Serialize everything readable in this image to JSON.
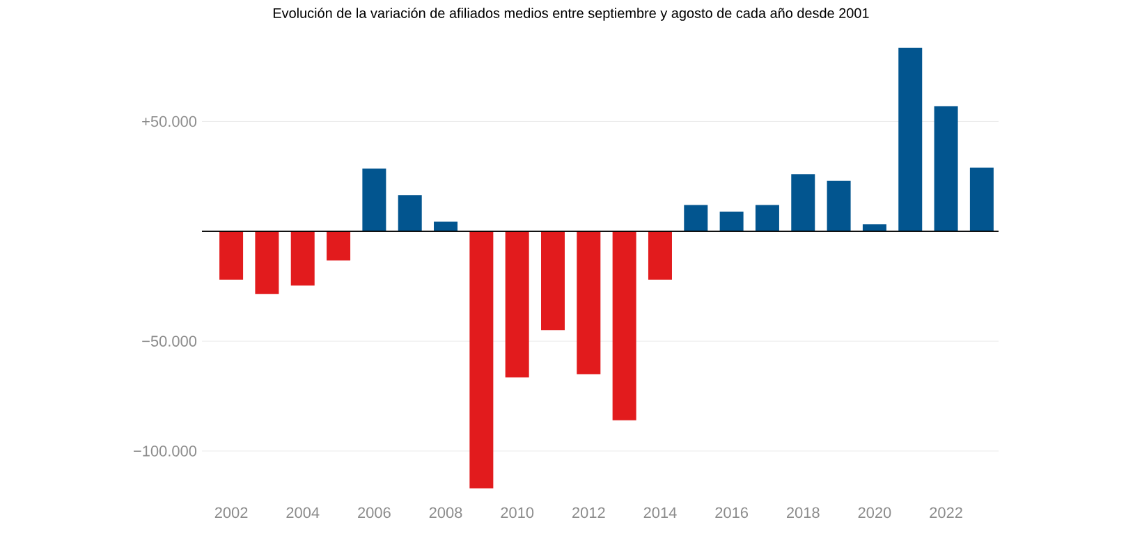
{
  "chart_data": {
    "type": "bar",
    "title": "Evolución de la variación de afiliados medios entre septiembre y agosto de cada año desde 2001",
    "categories": [
      "2002",
      null,
      "2004",
      null,
      "2006",
      null,
      "2008",
      null,
      "2010",
      null,
      "2012",
      null,
      "2014",
      null,
      "2016",
      null,
      "2018",
      null,
      "2020",
      null,
      "2022",
      null
    ],
    "values": [
      -22000,
      -28500,
      -24700,
      -13300,
      28500,
      16500,
      4400,
      -117000,
      -66500,
      -45000,
      -65000,
      -86000,
      -22000,
      12000,
      9000,
      12000,
      26000,
      23000,
      3200,
      83500,
      57000,
      29000
    ],
    "colors": [
      "#e21b1d",
      "#e21b1d",
      "#e21b1d",
      "#e21b1d",
      "#02558f",
      "#02558f",
      "#02558f",
      "#e21b1d",
      "#e21b1d",
      "#e21b1d",
      "#e21b1d",
      "#e21b1d",
      "#e21b1d",
      "#02558f",
      "#02558f",
      "#02558f",
      "#02558f",
      "#02558f",
      "#02558f",
      "#02558f",
      "#02558f",
      "#02558f"
    ],
    "ylim": [
      -117000,
      85000
    ],
    "yticks": [
      {
        "value": 50000,
        "label": "+50.000"
      },
      {
        "value": -50000,
        "label": "−50.000"
      },
      {
        "value": -100000,
        "label": "−100.000"
      }
    ],
    "grid": "y"
  }
}
